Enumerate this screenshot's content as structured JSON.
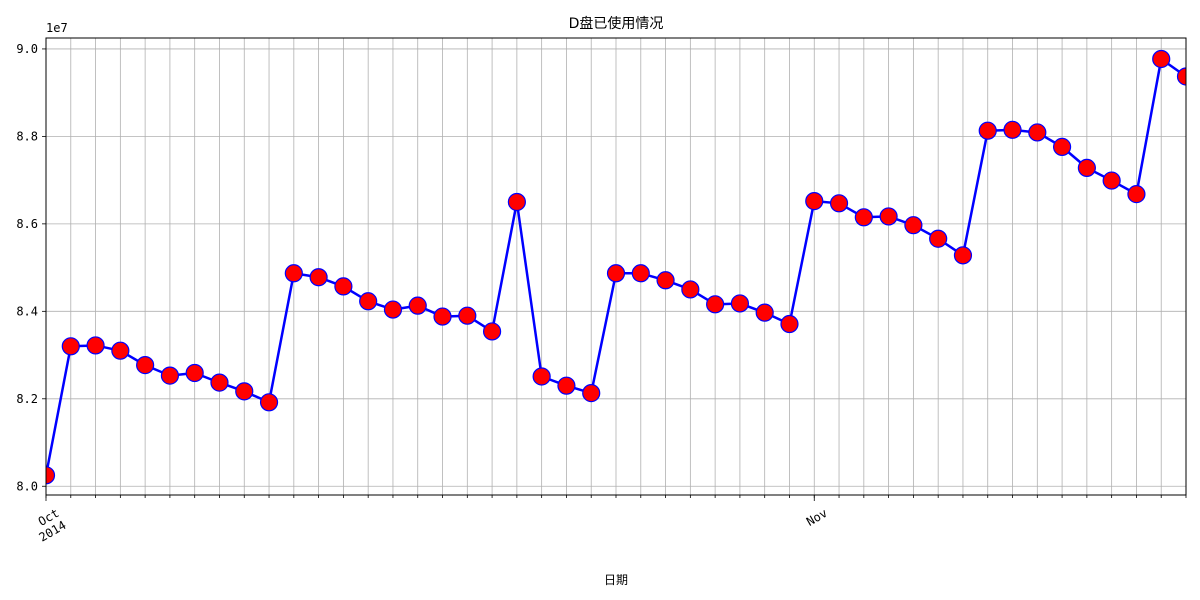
{
  "chart_data": {
    "type": "line",
    "title": "D盘已使用情况",
    "xlabel": "日期",
    "ylabel": "",
    "y_offset_label": "1e7",
    "y_ticks": [
      {
        "value": 8.0,
        "label": "8.0"
      },
      {
        "value": 8.2,
        "label": "8.2"
      },
      {
        "value": 8.4,
        "label": "8.4"
      },
      {
        "value": 8.6,
        "label": "8.6"
      },
      {
        "value": 8.8,
        "label": "8.8"
      },
      {
        "value": 9.0,
        "label": "9.0"
      }
    ],
    "ylim": [
      7.98,
      9.025
    ],
    "x_range": [
      "2014-10-01",
      "2014-11-16"
    ],
    "x_tick_labels": [
      {
        "date": "2014-10-01",
        "line1": "Oct",
        "line2": "2014"
      },
      {
        "date": "2014-11-01",
        "line1": "Nov",
        "line2": ""
      }
    ],
    "grid": true,
    "line_color": "#0000ff",
    "marker_face_color": "#ff0000",
    "marker_edge_color": "#0000ff",
    "series": [
      {
        "x": [
          "2014-10-01",
          "2014-10-02",
          "2014-10-03",
          "2014-10-04",
          "2014-10-05",
          "2014-10-06",
          "2014-10-07",
          "2014-10-08",
          "2014-10-09",
          "2014-10-10",
          "2014-10-11",
          "2014-10-12",
          "2014-10-13",
          "2014-10-14",
          "2014-10-15",
          "2014-10-16",
          "2014-10-17",
          "2014-10-18",
          "2014-10-19",
          "2014-10-20",
          "2014-10-21",
          "2014-10-22",
          "2014-10-23",
          "2014-10-24",
          "2014-10-25",
          "2014-10-26",
          "2014-10-27",
          "2014-10-28",
          "2014-10-29",
          "2014-10-30",
          "2014-10-31",
          "2014-11-01",
          "2014-11-02",
          "2014-11-03",
          "2014-11-04",
          "2014-11-05",
          "2014-11-06",
          "2014-11-07",
          "2014-11-08",
          "2014-11-09",
          "2014-11-10",
          "2014-11-11",
          "2014-11-12",
          "2014-11-13",
          "2014-11-14",
          "2014-11-15",
          "2014-11-16"
        ],
        "values": [
          8.025,
          8.32,
          8.322,
          8.31,
          8.277,
          8.253,
          8.259,
          8.237,
          8.217,
          8.192,
          8.487,
          8.478,
          8.457,
          8.423,
          8.404,
          8.413,
          8.388,
          8.39,
          8.354,
          8.65,
          8.251,
          8.23,
          8.213,
          8.487,
          8.487,
          8.471,
          8.45,
          8.416,
          8.418,
          8.397,
          8.371,
          8.652,
          8.647,
          8.615,
          8.617,
          8.597,
          8.566,
          8.528,
          8.813,
          8.815,
          8.809,
          8.776,
          8.728,
          8.699,
          8.668,
          8.977,
          8.937
        ]
      }
    ]
  }
}
